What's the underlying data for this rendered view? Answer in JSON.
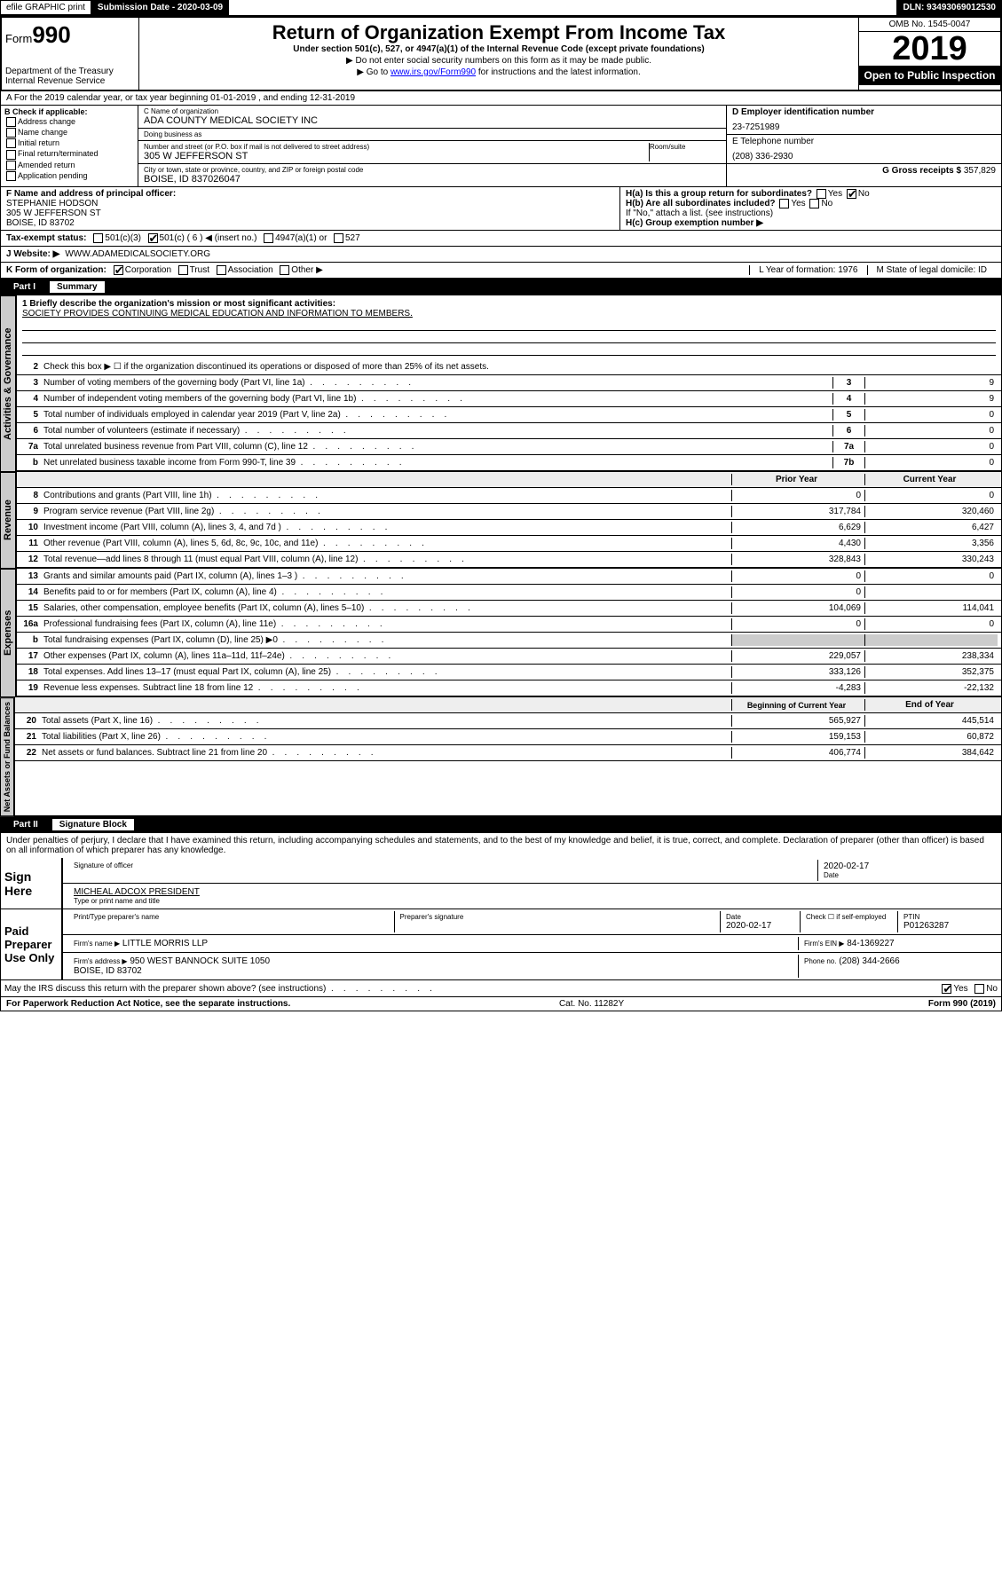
{
  "topbar": {
    "efile": "efile GRAPHIC print",
    "subdate_lbl": "Submission Date - 2020-03-09",
    "dln": "DLN: 93493069012530"
  },
  "header": {
    "form_prefix": "Form",
    "form_num": "990",
    "dept": "Department of the Treasury\nInternal Revenue Service",
    "title": "Return of Organization Exempt From Income Tax",
    "sub": "Under section 501(c), 527, or 4947(a)(1) of the Internal Revenue Code (except private foundations)",
    "note1": "▶ Do not enter social security numbers on this form as it may be made public.",
    "note2_pre": "▶ Go to ",
    "note2_link": "www.irs.gov/Form990",
    "note2_post": " for instructions and the latest information.",
    "omb": "OMB No. 1545-0047",
    "year": "2019",
    "open": "Open to Public Inspection"
  },
  "row_a": "A For the 2019 calendar year, or tax year beginning 01-01-2019   , and ending 12-31-2019",
  "col_b": {
    "hdr": "B Check if applicable:",
    "opts": [
      "Address change",
      "Name change",
      "Initial return",
      "Final return/terminated",
      "Amended return",
      "Application pending"
    ]
  },
  "org": {
    "c_lbl": "C Name of organization",
    "c_val": "ADA COUNTY MEDICAL SOCIETY INC",
    "dba_lbl": "Doing business as",
    "dba_val": "",
    "addr_lbl": "Number and street (or P.O. box if mail is not delivered to street address)",
    "room_lbl": "Room/suite",
    "addr_val": "305 W JEFFERSON ST",
    "city_lbl": "City or town, state or province, country, and ZIP or foreign postal code",
    "city_val": "BOISE, ID  837026047"
  },
  "right": {
    "d_lbl": "D Employer identification number",
    "d_val": "23-7251989",
    "e_lbl": "E Telephone number",
    "e_val": "(208) 336-2930",
    "g_lbl": "G Gross receipts $ ",
    "g_val": "357,829"
  },
  "block_fh": {
    "f_lbl": "F Name and address of principal officer:",
    "f_val": "STEPHANIE HODSON\n305 W JEFFERSON ST\nBOISE, ID  83702",
    "ha_lbl": "H(a)  Is this a group return for subordinates?",
    "hb_lbl": "H(b)  Are all subordinates included?",
    "hb_note": "If \"No,\" attach a list. (see instructions)",
    "hc_lbl": "H(c)  Group exemption number ▶",
    "yes": "Yes",
    "no": "No"
  },
  "tax_status": {
    "lbl": "Tax-exempt status:",
    "o1": "501(c)(3)",
    "o2": "501(c) ( 6 ) ◀ (insert no.)",
    "o3": "4947(a)(1) or",
    "o4": "527"
  },
  "website": {
    "lbl": "J   Website: ▶",
    "val": "WWW.ADAMEDICALSOCIETY.ORG"
  },
  "row_k": {
    "k": "K Form of organization:",
    "opts": [
      "Corporation",
      "Trust",
      "Association",
      "Other ▶"
    ],
    "l": "L Year of formation: 1976",
    "m": "M State of legal domicile: ID"
  },
  "part1": {
    "num": "Part I",
    "title": "Summary"
  },
  "summary": {
    "q1_lbl": "1  Briefly describe the organization's mission or most significant activities:",
    "q1_val": "SOCIETY PROVIDES CONTINUING MEDICAL EDUCATION AND INFORMATION TO MEMBERS.",
    "q2": "Check this box ▶ ☐  if the organization discontinued its operations or disposed of more than 25% of its net assets.",
    "lines_single": [
      {
        "n": "3",
        "t": "Number of voting members of the governing body (Part VI, line 1a)",
        "b": "3",
        "v": "9"
      },
      {
        "n": "4",
        "t": "Number of independent voting members of the governing body (Part VI, line 1b)",
        "b": "4",
        "v": "9"
      },
      {
        "n": "5",
        "t": "Total number of individuals employed in calendar year 2019 (Part V, line 2a)",
        "b": "5",
        "v": "0"
      },
      {
        "n": "6",
        "t": "Total number of volunteers (estimate if necessary)",
        "b": "6",
        "v": "0"
      },
      {
        "n": "7a",
        "t": "Total unrelated business revenue from Part VIII, column (C), line 12",
        "b": "7a",
        "v": "0"
      },
      {
        "n": "b",
        "t": "Net unrelated business taxable income from Form 990-T, line 39",
        "b": "7b",
        "v": "0"
      }
    ],
    "col_hdr": {
      "prior": "Prior Year",
      "curr": "Current Year"
    },
    "revenue": [
      {
        "n": "8",
        "t": "Contributions and grants (Part VIII, line 1h)",
        "p": "0",
        "c": "0"
      },
      {
        "n": "9",
        "t": "Program service revenue (Part VIII, line 2g)",
        "p": "317,784",
        "c": "320,460"
      },
      {
        "n": "10",
        "t": "Investment income (Part VIII, column (A), lines 3, 4, and 7d )",
        "p": "6,629",
        "c": "6,427"
      },
      {
        "n": "11",
        "t": "Other revenue (Part VIII, column (A), lines 5, 6d, 8c, 9c, 10c, and 11e)",
        "p": "4,430",
        "c": "3,356"
      },
      {
        "n": "12",
        "t": "Total revenue—add lines 8 through 11 (must equal Part VIII, column (A), line 12)",
        "p": "328,843",
        "c": "330,243"
      }
    ],
    "expenses": [
      {
        "n": "13",
        "t": "Grants and similar amounts paid (Part IX, column (A), lines 1–3 )",
        "p": "0",
        "c": "0"
      },
      {
        "n": "14",
        "t": "Benefits paid to or for members (Part IX, column (A), line 4)",
        "p": "0",
        "c": ""
      },
      {
        "n": "15",
        "t": "Salaries, other compensation, employee benefits (Part IX, column (A), lines 5–10)",
        "p": "104,069",
        "c": "114,041"
      },
      {
        "n": "16a",
        "t": "Professional fundraising fees (Part IX, column (A), line 11e)",
        "p": "0",
        "c": "0"
      },
      {
        "n": "b",
        "t": "Total fundraising expenses (Part IX, column (D), line 25) ▶0",
        "p": "",
        "c": "",
        "shade": true
      },
      {
        "n": "17",
        "t": "Other expenses (Part IX, column (A), lines 11a–11d, 11f–24e)",
        "p": "229,057",
        "c": "238,334"
      },
      {
        "n": "18",
        "t": "Total expenses. Add lines 13–17 (must equal Part IX, column (A), line 25)",
        "p": "333,126",
        "c": "352,375"
      },
      {
        "n": "19",
        "t": "Revenue less expenses. Subtract line 18 from line 12",
        "p": "-4,283",
        "c": "-22,132"
      }
    ],
    "net_hdr": {
      "prior": "Beginning of Current Year",
      "curr": "End of Year"
    },
    "net": [
      {
        "n": "20",
        "t": "Total assets (Part X, line 16)",
        "p": "565,927",
        "c": "445,514"
      },
      {
        "n": "21",
        "t": "Total liabilities (Part X, line 26)",
        "p": "159,153",
        "c": "60,872"
      },
      {
        "n": "22",
        "t": "Net assets or fund balances. Subtract line 21 from line 20",
        "p": "406,774",
        "c": "384,642"
      }
    ]
  },
  "vtabs": {
    "gov": "Activities & Governance",
    "rev": "Revenue",
    "exp": "Expenses",
    "net": "Net Assets or Fund Balances"
  },
  "part2": {
    "num": "Part II",
    "title": "Signature Block"
  },
  "sig": {
    "perjury": "Under penalties of perjury, I declare that I have examined this return, including accompanying schedules and statements, and to the best of my knowledge and belief, it is true, correct, and complete. Declaration of preparer (other than officer) is based on all information of which preparer has any knowledge.",
    "sign_here": "Sign Here",
    "sig_officer": "Signature of officer",
    "date1": "2020-02-17",
    "officer": "MICHEAL ADCOX  PRESIDENT",
    "type_name": "Type or print name and title",
    "paid": "Paid Preparer Use Only",
    "prep_name_lbl": "Print/Type preparer's name",
    "prep_sig_lbl": "Preparer's signature",
    "date_lbl": "Date",
    "date2": "2020-02-17",
    "check_lbl": "Check ☐ if self-employed",
    "ptin_lbl": "PTIN",
    "ptin": "P01263287",
    "firm_name_lbl": "Firm's name   ▶",
    "firm_name": "LITTLE MORRIS LLP",
    "firm_ein_lbl": "Firm's EIN ▶",
    "firm_ein": "84-1369227",
    "firm_addr_lbl": "Firm's address ▶",
    "firm_addr": "950 WEST BANNOCK SUITE 1050\nBOISE, ID  83702",
    "phone_lbl": "Phone no.",
    "phone": "(208) 344-2666",
    "discuss": "May the IRS discuss this return with the preparer shown above? (see instructions)",
    "yes": "Yes",
    "no": "No"
  },
  "footer": {
    "left": "For Paperwork Reduction Act Notice, see the separate instructions.",
    "mid": "Cat. No. 11282Y",
    "right": "Form 990 (2019)"
  }
}
